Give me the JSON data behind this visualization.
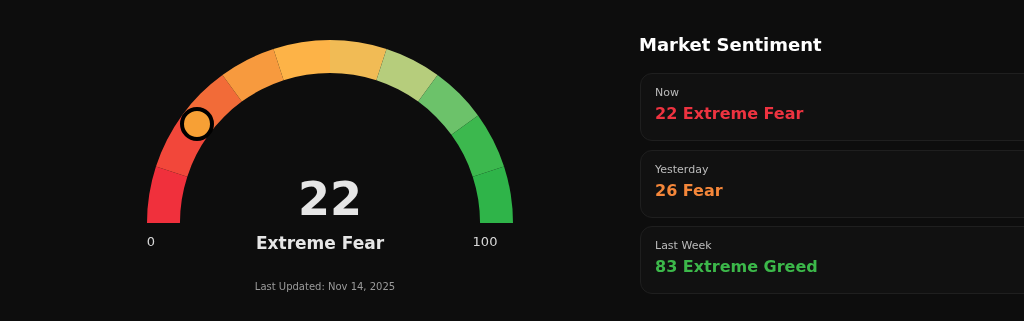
{
  "chart_data": [
    {
      "type": "donut",
      "categories": [
        null,
        null,
        null,
        null,
        null,
        null,
        null,
        null,
        null,
        null
      ],
      "values": [
        10,
        10,
        10,
        10,
        10,
        10,
        10,
        10,
        10,
        10
      ],
      "colors": [
        "#f0303c",
        "#f2473a",
        "#f26b38",
        "#f79a3e",
        "#fdb347",
        "#f1bb55",
        "#b6cd7c",
        "#6cc26a",
        "#3cb84e",
        "#2fb449"
      ],
      "annotations": [
        "0",
        "100",
        "22",
        "Extreme Fear",
        "Last Updated: Nov 14, 2025"
      ]
    },
    {
      "type": "other",
      "title": "Market Sentiment",
      "annotations": [
        "Now",
        "22 Extreme Fear",
        "Yesterday",
        "26 Fear",
        "Last Week",
        "83 Extreme Greed"
      ]
    }
  ]
}
